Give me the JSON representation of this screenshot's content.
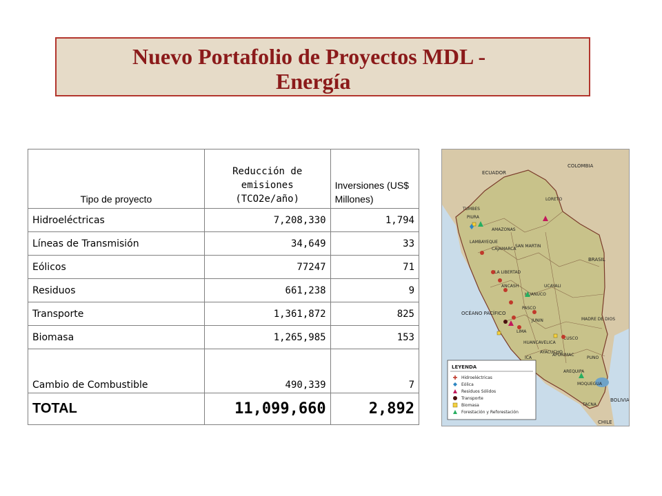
{
  "title": {
    "line1": "Nuevo Portafolio de Proyectos MDL -",
    "line2": "Energía"
  },
  "table": {
    "headers": {
      "tipo": "Tipo de proyecto",
      "reduccion": "Reducción de emisiones (TCO2e/año)",
      "inversiones": "Inversiones (US$ Millones)"
    },
    "rows": [
      {
        "tipo": "Hidroeléctricas",
        "reduccion": "7,208,330",
        "inversiones": "1,794"
      },
      {
        "tipo": "Líneas de Transmisión",
        "reduccion": "34,649",
        "inversiones": "33"
      },
      {
        "tipo": "Eólicos",
        "reduccion": "77247",
        "inversiones": "71"
      },
      {
        "tipo": "Residuos",
        "reduccion": "661,238",
        "inversiones": "9"
      },
      {
        "tipo": "Transporte",
        "reduccion": "1,361,872",
        "inversiones": "825"
      },
      {
        "tipo": "Biomasa",
        "reduccion": "1,265,985",
        "inversiones": "153"
      },
      {
        "tipo": "Cambio de Combustible",
        "reduccion": "490,339",
        "inversiones": "7"
      }
    ],
    "total": {
      "tipo": "TOTAL",
      "reduccion": "11,099,660",
      "inversiones": "2,892"
    }
  },
  "map": {
    "countries": {
      "ecuador": "ECUADOR",
      "colombia": "COLOMBIA",
      "brasil": "BRASIL",
      "bolivia": "BOLIVIA",
      "chile": "CHILE",
      "ocean": "OCÉANO PACÍFICO"
    },
    "regions": [
      "TUMBES",
      "PIURA",
      "LORETO",
      "AMAZONAS",
      "LAMBAYEQUE",
      "CAJAMARCA",
      "SAN MARTIN",
      "LA LIBERTAD",
      "ANCASH",
      "HUANUCO",
      "UCAYALI",
      "PASCO",
      "JUNIN",
      "LIMA",
      "HUANCAVELICA",
      "ICA",
      "AYACUCHO",
      "CUSCO",
      "MADRE DE DIOS",
      "APURIMAC",
      "AREQUIPA",
      "PUNO",
      "MOQUEGUA",
      "TACNA"
    ],
    "legend": {
      "title": "LEYENDA",
      "items": [
        {
          "label": "Hidroeléctricas",
          "color": "#c0392b",
          "shape": "cross"
        },
        {
          "label": "Eólica",
          "color": "#2e86c1",
          "shape": "diamond"
        },
        {
          "label": "Residuos Sólidos",
          "color": "#c2185b",
          "shape": "triangle"
        },
        {
          "label": "Transporte",
          "color": "#4a1010",
          "shape": "circle"
        },
        {
          "label": "Biomasa",
          "color": "#f4d03f",
          "shape": "square"
        },
        {
          "label": "Forestación y Reforestación",
          "color": "#27ae60",
          "shape": "triangle"
        }
      ]
    }
  }
}
